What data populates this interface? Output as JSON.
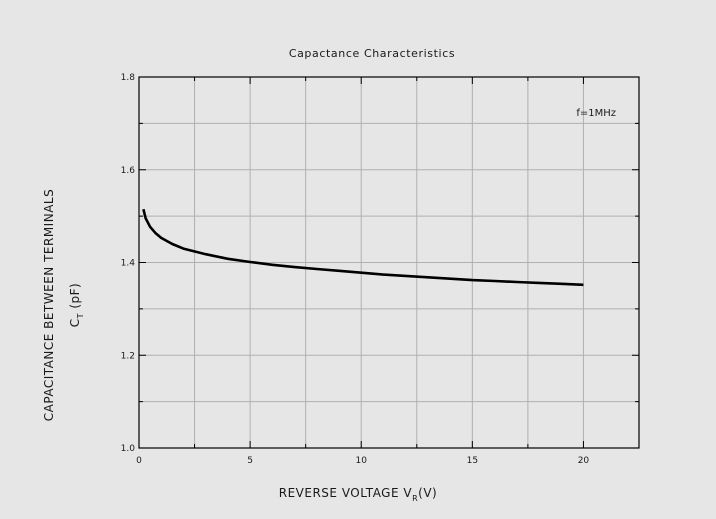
{
  "chart_data": {
    "type": "line",
    "title": "Capactance Characteristics",
    "xlabel": {
      "main": "REVERSE VOLTAGE V",
      "sub": "R",
      "unit": "(V)"
    },
    "ylabel": {
      "line1": "CAPACITANCE BETWEEN TERMINALS",
      "line2_main": "C",
      "line2_sub": "T",
      "line2_unit": " (pF)"
    },
    "annotation": "f=1MHz",
    "xlim": [
      0,
      22.5
    ],
    "ylim": [
      1.0,
      1.8
    ],
    "xticks": [
      0,
      5,
      10,
      15,
      20
    ],
    "xtick_labels": [
      "0",
      "5",
      "10",
      "15",
      "20"
    ],
    "yticks": [
      1.0,
      1.2,
      1.4,
      1.6,
      1.8
    ],
    "ytick_labels": [
      "1.0",
      "1.2",
      "1.4",
      "1.6",
      "1.8"
    ],
    "grid": true,
    "colors": {
      "line": "#000000",
      "plot_bg": "#e6e6e6",
      "grid": "#b0b0b0"
    },
    "series": [
      {
        "x": [
          0.2,
          0.3,
          0.5,
          0.75,
          1,
          1.5,
          2,
          3,
          4,
          5,
          6,
          7,
          8,
          9,
          10,
          11,
          12,
          13,
          14,
          15,
          16,
          17,
          18,
          19,
          20
        ],
        "y": [
          1.515,
          1.495,
          1.477,
          1.463,
          1.453,
          1.44,
          1.43,
          1.418,
          1.408,
          1.401,
          1.395,
          1.39,
          1.386,
          1.382,
          1.378,
          1.374,
          1.371,
          1.368,
          1.365,
          1.362,
          1.36,
          1.358,
          1.356,
          1.354,
          1.352
        ]
      }
    ]
  }
}
